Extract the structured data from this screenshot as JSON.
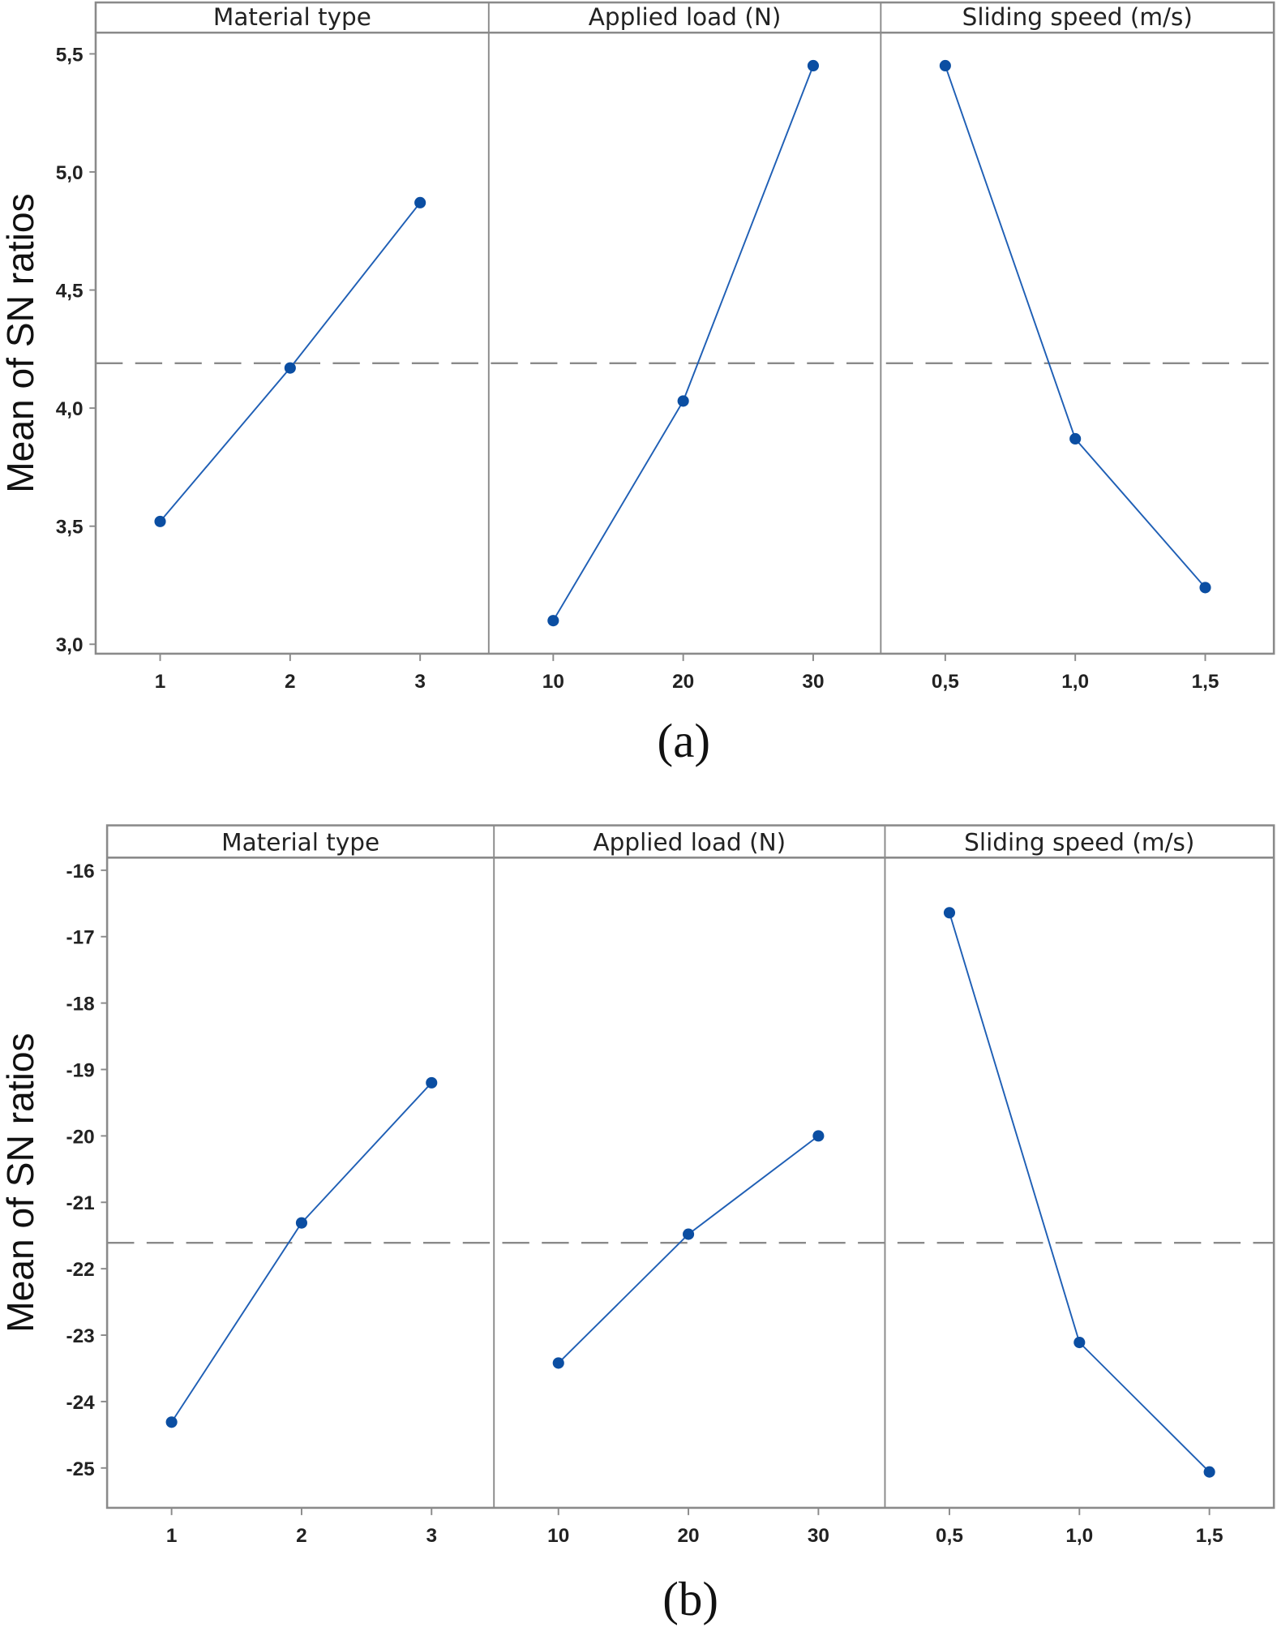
{
  "chart_data": [
    {
      "type": "line",
      "caption": "(a)",
      "ylabel": "Mean of SN ratios",
      "ylim": [
        2.96,
        5.59
      ],
      "yticks": [
        "3,0",
        "3,5",
        "4,0",
        "4,5",
        "5,0",
        "5,5"
      ],
      "ytick_values": [
        3.0,
        3.5,
        4.0,
        4.5,
        5.0,
        5.5
      ],
      "mean_line": 4.19,
      "panels": [
        {
          "title": "Material type",
          "x": [
            "1",
            "2",
            "3"
          ],
          "values": [
            3.52,
            4.17,
            4.87
          ]
        },
        {
          "title": "Applied load (N)",
          "x": [
            "10",
            "20",
            "30"
          ],
          "values": [
            3.1,
            4.03,
            5.45
          ]
        },
        {
          "title": "Sliding speed (m/s)",
          "x": [
            "0,5",
            "1,0",
            "1,5"
          ],
          "values": [
            5.45,
            3.87,
            3.24
          ]
        }
      ]
    },
    {
      "type": "line",
      "caption": "(b)",
      "ylabel": "Mean of SN ratios",
      "ylim": [
        -25.6,
        -15.81
      ],
      "yticks": [
        "-25",
        "-24",
        "-23",
        "-22",
        "-21",
        "-20",
        "-19",
        "-18",
        "-17",
        "-16"
      ],
      "ytick_values": [
        -25,
        -24,
        -23,
        -22,
        -21,
        -20,
        -19,
        -18,
        -17,
        -16
      ],
      "mean_line": -21.61,
      "panels": [
        {
          "title": "Material type",
          "x": [
            "1",
            "2",
            "3"
          ],
          "values": [
            -24.31,
            -21.31,
            -19.2
          ]
        },
        {
          "title": "Applied load (N)",
          "x": [
            "10",
            "20",
            "30"
          ],
          "values": [
            -23.42,
            -21.48,
            -20.0
          ]
        },
        {
          "title": "Sliding speed (m/s)",
          "x": [
            "0,5",
            "1,0",
            "1,5"
          ],
          "values": [
            -16.64,
            -23.11,
            -25.06
          ]
        }
      ]
    }
  ],
  "colors": {
    "series": "#1f5fb5",
    "marker": "#0b4ea2",
    "frame": "#8a8a8a",
    "mean": "#8a8a8a"
  }
}
